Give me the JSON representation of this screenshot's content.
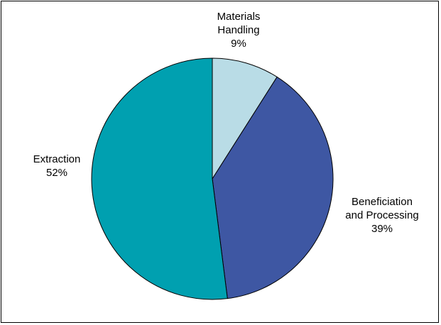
{
  "chart_data": {
    "type": "pie",
    "categories": [
      "Materials Handling",
      "Beneficiation and Processing",
      "Extraction"
    ],
    "values": [
      9,
      39,
      52
    ],
    "unit": "%",
    "colors": [
      "#b9dce6",
      "#3e57a3",
      "#00a0b0"
    ],
    "data_labels": [
      {
        "lines": [
          "Materials",
          "Handling",
          "9%"
        ]
      },
      {
        "lines": [
          "Beneficiation",
          "and Processing",
          "39%"
        ]
      },
      {
        "lines": [
          "Extraction",
          "52%"
        ]
      }
    ],
    "start_angle_deg": 0,
    "direction": "clockwise",
    "legend": "none"
  }
}
